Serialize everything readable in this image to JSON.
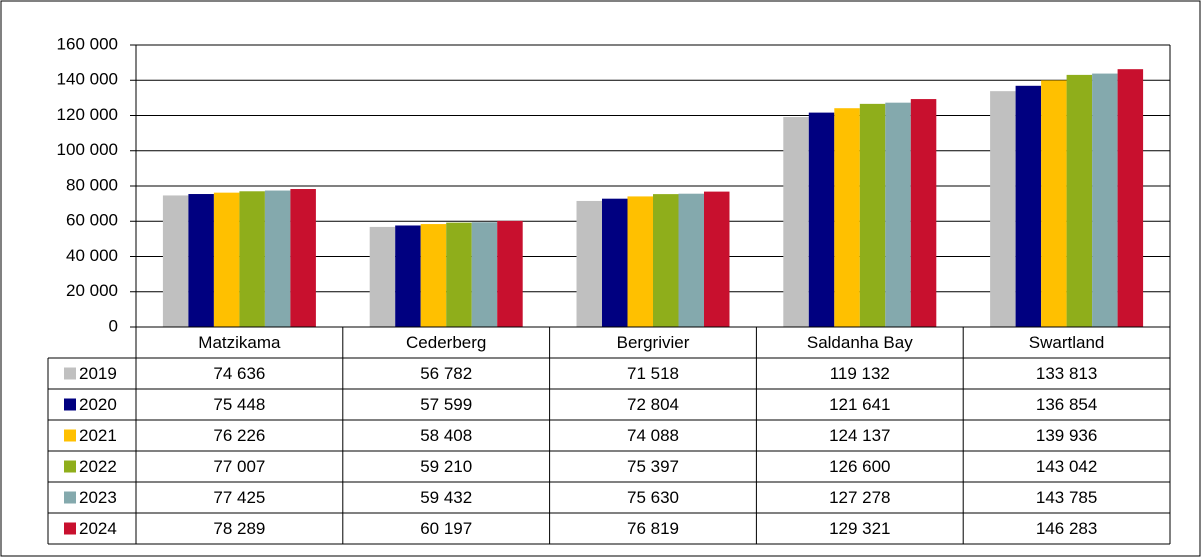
{
  "chart_data": {
    "type": "bar",
    "categories": [
      "Matzikama",
      "Cederberg",
      "Bergrivier",
      "Saldanha Bay",
      "Swartland"
    ],
    "series": [
      {
        "name": "2019",
        "color": "#c0c0c0",
        "values": [
          74636,
          56782,
          71518,
          119132,
          133813
        ],
        "value_labels": [
          "74 636",
          "56 782",
          "71 518",
          "119 132",
          "133 813"
        ]
      },
      {
        "name": "2020",
        "color": "#000080",
        "values": [
          75448,
          57599,
          72804,
          121641,
          136854
        ],
        "value_labels": [
          "75 448",
          "57 599",
          "72 804",
          "121 641",
          "136 854"
        ]
      },
      {
        "name": "2021",
        "color": "#ffc000",
        "values": [
          76226,
          58408,
          74088,
          124137,
          139936
        ],
        "value_labels": [
          "76 226",
          "58 408",
          "74 088",
          "124 137",
          "139 936"
        ]
      },
      {
        "name": "2022",
        "color": "#8fae1b",
        "values": [
          77007,
          59210,
          75397,
          126600,
          143042
        ],
        "value_labels": [
          "77 007",
          "59 210",
          "75 397",
          "126 600",
          "143 042"
        ]
      },
      {
        "name": "2023",
        "color": "#84a9ad",
        "values": [
          77425,
          59432,
          75630,
          127278,
          143785
        ],
        "value_labels": [
          "77 425",
          "59 432",
          "75 630",
          "127 278",
          "143 785"
        ]
      },
      {
        "name": "2024",
        "color": "#c8102e",
        "values": [
          78289,
          60197,
          76819,
          129321,
          146283
        ],
        "value_labels": [
          "78 289",
          "60 197",
          "76 819",
          "129 321",
          "146 283"
        ]
      }
    ],
    "ylim": [
      0,
      160000
    ],
    "yticks": [
      0,
      {
        "value": 20000,
        "label": "20 000"
      },
      {
        "value": 40000,
        "label": "40 000"
      },
      {
        "value": 60000,
        "label": "60 000"
      },
      {
        "value": 80000,
        "label": "80 000"
      },
      {
        "value": 100000,
        "label": "100 000"
      },
      {
        "value": 120000,
        "label": "120 000"
      },
      {
        "value": 140000,
        "label": "140 000"
      },
      {
        "value": 160000,
        "label": "160 000"
      }
    ],
    "grid": true
  }
}
